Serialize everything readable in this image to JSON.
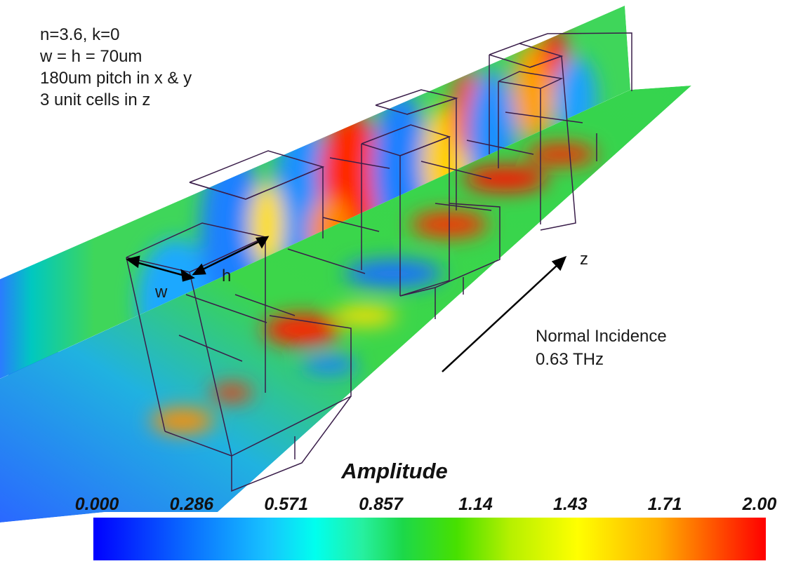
{
  "params": [
    "n=3.6, k=0",
    "w = h = 70um",
    "180um pitch in x & y",
    "3 unit cells in z"
  ],
  "labels": {
    "w": "w",
    "h": "h",
    "z": "z"
  },
  "incidence": {
    "line1": "Normal Incidence",
    "line2": "0.63 THz"
  },
  "colorbar": {
    "title": "Amplitude",
    "ticks": [
      "0.000",
      "0.286",
      "0.571",
      "0.857",
      "1.14",
      "1.43",
      "1.71",
      "2.00"
    ],
    "colors": [
      "#0000ff",
      "#0a6cff",
      "#17c4ff",
      "#00ffee",
      "#1cd84a",
      "#b6f000",
      "#ffff00",
      "#ffb000",
      "#ff0000"
    ]
  }
}
